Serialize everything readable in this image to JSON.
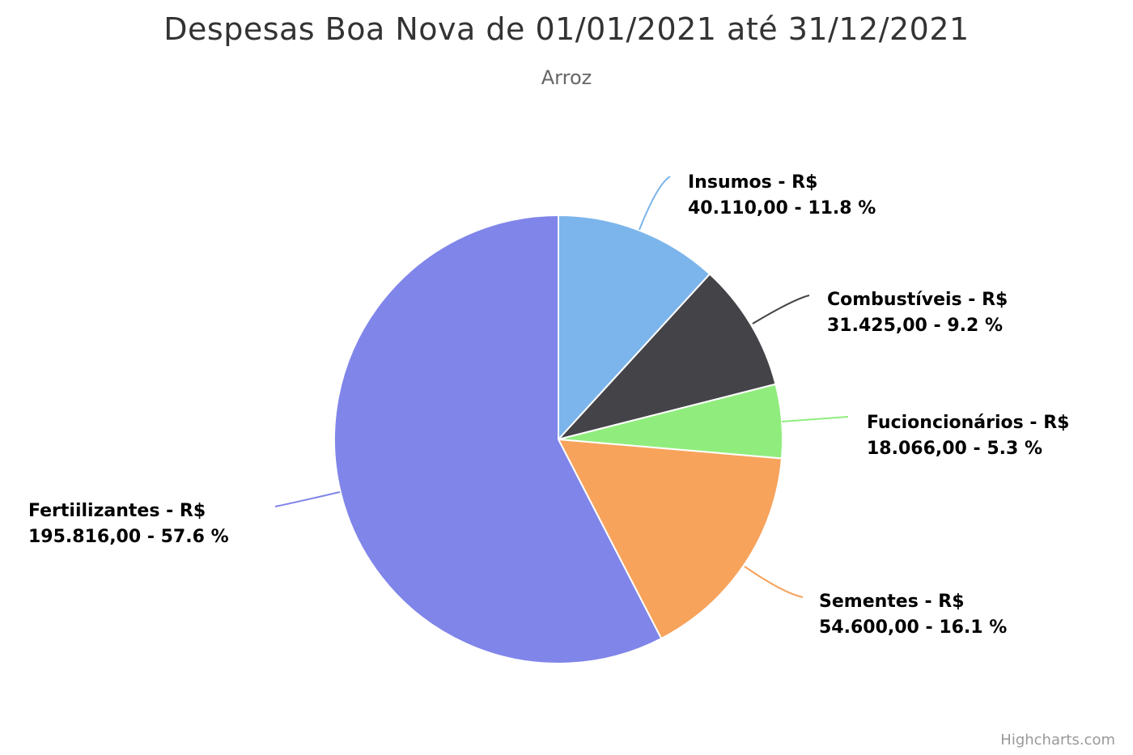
{
  "chart_data": {
    "type": "pie",
    "title": "Despesas Boa Nova de 01/01/2021 até 31/12/2021",
    "subtitle": "Arroz",
    "credits": "Highcharts.com",
    "series": [
      {
        "data": [
          {
            "name": "Insumos",
            "value": 40110.0,
            "label_line1": "Insumos - R$",
            "label_line2": "40.110,00 - 11.8 %",
            "color": "#7cb5ec"
          },
          {
            "name": "Combustíveis",
            "value": 31425.0,
            "label_line1": "Combustíveis - R$",
            "label_line2": "31.425,00 - 9.2 %",
            "color": "#434348"
          },
          {
            "name": "Fucioncionários",
            "value": 18066.0,
            "label_line1": "Fucioncionários - R$",
            "label_line2": "18.066,00 - 5.3 %",
            "color": "#90ed7d"
          },
          {
            "name": "Sementes",
            "value": 54600.0,
            "label_line1": "Sementes - R$",
            "label_line2": "54.600,00 - 16.1 %",
            "color": "#f7a35c"
          },
          {
            "name": "Fertiilizantes",
            "value": 195816.0,
            "label_line1": "Fertiilizantes - R$",
            "label_line2": "195.816,00 - 57.6 %",
            "color": "#8085e9"
          }
        ]
      }
    ]
  }
}
